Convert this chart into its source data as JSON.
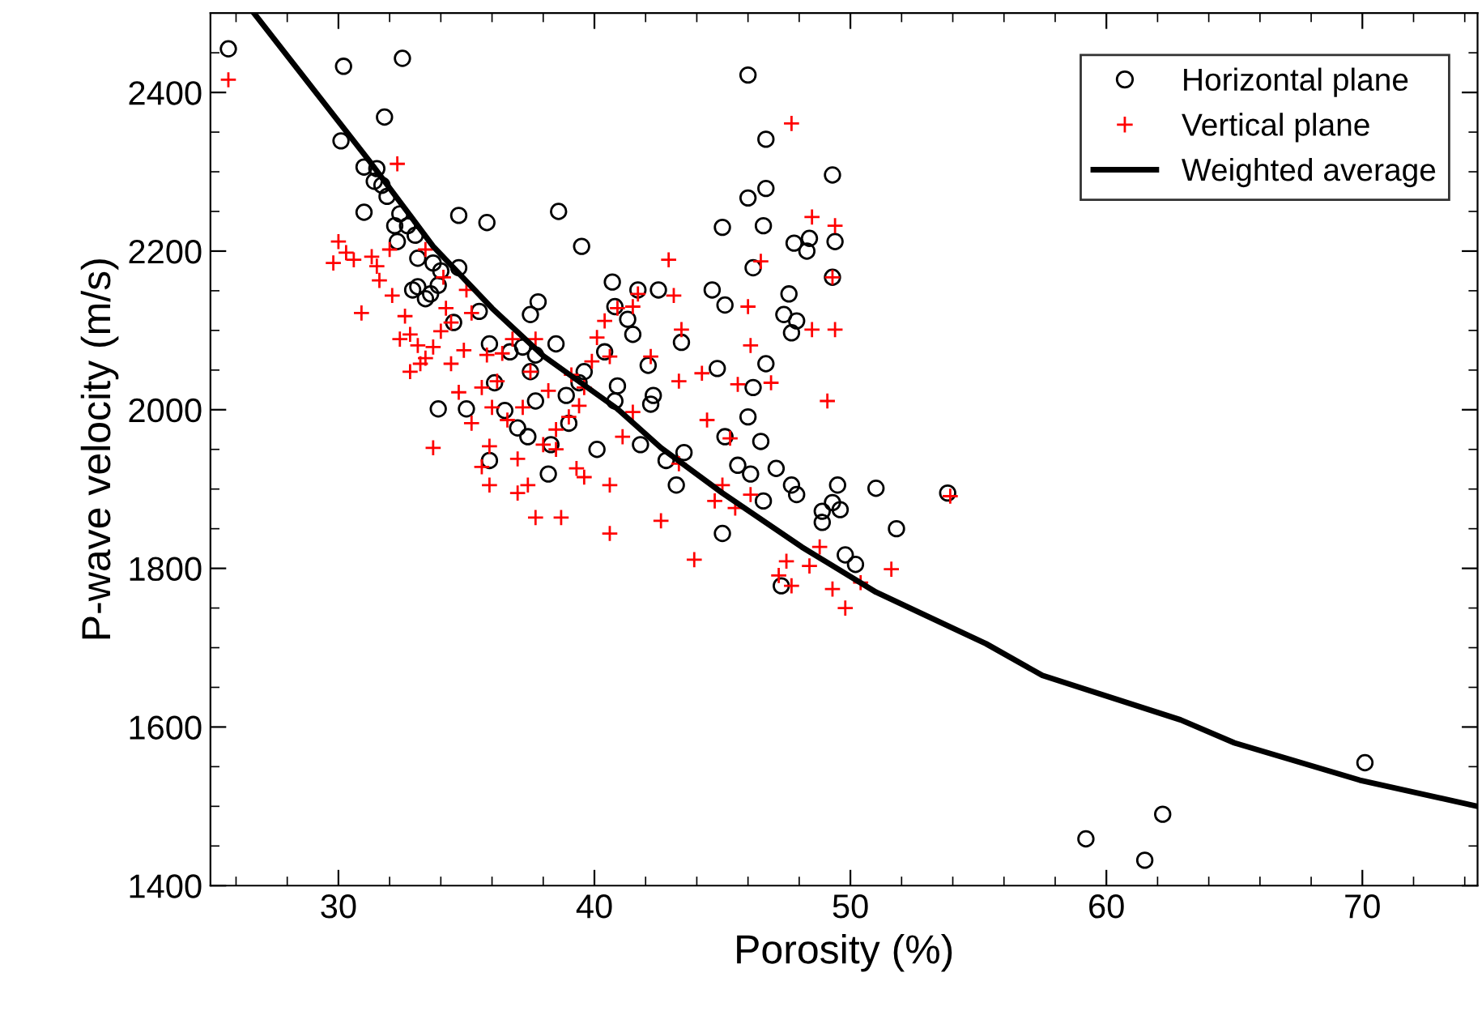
{
  "chart_data": {
    "type": "scatter",
    "xlabel": "Porosity (%)",
    "ylabel": "P-wave velocity (m/s)",
    "xlim": [
      25,
      74.5
    ],
    "ylim": [
      1400,
      2500
    ],
    "xticks": [
      {
        "value": 26,
        "label": null
      },
      {
        "value": 28,
        "label": null
      },
      30,
      {
        "value": 32,
        "label": null
      },
      {
        "value": 34,
        "label": null
      },
      {
        "value": 36,
        "label": null
      },
      {
        "value": 38,
        "label": null
      },
      40,
      {
        "value": 42,
        "label": null
      },
      {
        "value": 44,
        "label": null
      },
      {
        "value": 46,
        "label": null
      },
      {
        "value": 48,
        "label": null
      },
      50,
      {
        "value": 52,
        "label": null
      },
      {
        "value": 54,
        "label": null
      },
      {
        "value": 56,
        "label": null
      },
      {
        "value": 58,
        "label": null
      },
      60,
      {
        "value": 62,
        "label": null
      },
      {
        "value": 64,
        "label": null
      },
      {
        "value": 66,
        "label": null
      },
      {
        "value": 68,
        "label": null
      },
      70,
      {
        "value": 72,
        "label": null
      },
      {
        "value": 74,
        "label": null
      }
    ],
    "yticks": [
      1400,
      {
        "value": 1450,
        "label": null
      },
      {
        "value": 1500,
        "label": null
      },
      {
        "value": 1550,
        "label": null
      },
      1600,
      {
        "value": 1650,
        "label": null
      },
      {
        "value": 1700,
        "label": null
      },
      {
        "value": 1750,
        "label": null
      },
      1800,
      {
        "value": 1850,
        "label": null
      },
      {
        "value": 1900,
        "label": null
      },
      {
        "value": 1950,
        "label": null
      },
      2000,
      {
        "value": 2050,
        "label": null
      },
      {
        "value": 2100,
        "label": null
      },
      {
        "value": 2150,
        "label": null
      },
      2200,
      {
        "value": 2250,
        "label": null
      },
      {
        "value": 2300,
        "label": null
      },
      {
        "value": 2350,
        "label": null
      },
      2400,
      {
        "value": 2450,
        "label": null
      }
    ],
    "grid": false,
    "legend": "top right",
    "series": [
      {
        "name": "Horizontal plane",
        "marker": "circle",
        "color": "#000000",
        "x": [
          25.7,
          30.2,
          32.5,
          30.1,
          31.8,
          31.0,
          31.0,
          31.5,
          31.7,
          31.4,
          31.9,
          32.4,
          32.2,
          32.7,
          32.3,
          33.0,
          33.1,
          32.9,
          33.1,
          33.4,
          33.6,
          33.9,
          34.7,
          35.8,
          33.7,
          34.0,
          34.7,
          34.5,
          35.5,
          35.9,
          36.1,
          36.5,
          36.7,
          37.5,
          37.2,
          37.7,
          37.5,
          37.8,
          37.7,
          38.6,
          39.5,
          40.8,
          41.5,
          40.7,
          41.7,
          42.1,
          43.4,
          42.5,
          43.5,
          44.8,
          45.1,
          45.0,
          45.1,
          44.6,
          46.0,
          46.6,
          46.7,
          46.0,
          46.2,
          46.7,
          47.8,
          47.6,
          48.4,
          48.3,
          49.3,
          49.3,
          49.4,
          47.4,
          47.9,
          47.7,
          46.7,
          46.2,
          46.0,
          46.5,
          45.6,
          46.1,
          46.6,
          47.1,
          47.7,
          47.9,
          48.9,
          48.9,
          49.3,
          49.6,
          49.5,
          50.2,
          51.8,
          53.8,
          51.0,
          47.3,
          45.0,
          49.8,
          43.2,
          42.8,
          40.1,
          39.6,
          39.0,
          38.2,
          37.4,
          33.9,
          35.0,
          35.9,
          37.0,
          38.3,
          40.9,
          42.2,
          39.4,
          38.9,
          40.8,
          38.5,
          41.3,
          40.4,
          42.3,
          41.8,
          59.2,
          61.5,
          62.2,
          70.1
        ],
        "values": [
          2455,
          2433,
          2443,
          2339,
          2369,
          2306,
          2249,
          2304,
          2283,
          2288,
          2269,
          2247,
          2232,
          2232,
          2212,
          2220,
          2191,
          2151,
          2155,
          2140,
          2146,
          2157,
          2245,
          2236,
          2185,
          2175,
          2179,
          2110,
          2124,
          2083,
          2034,
          1999,
          2073,
          2120,
          2079,
          2069,
          2048,
          2136,
          2011,
          2250,
          2206,
          2130,
          2095,
          2161,
          2151,
          2056,
          2085,
          2151,
          1946,
          2052,
          1966,
          2230,
          2132,
          2151,
          2267,
          2232,
          2279,
          2422,
          2179,
          2341,
          2210,
          2146,
          2216,
          2200,
          2167,
          2296,
          2212,
          2120,
          2112,
          2097,
          2058,
          2028,
          1991,
          1960,
          1930,
          1919,
          1885,
          1926,
          1905,
          1893,
          1858,
          1872,
          1883,
          1874,
          1905,
          1805,
          1850,
          1895,
          1901,
          1778,
          1844,
          1817,
          1905,
          1936,
          1950,
          2048,
          1983,
          1919,
          1966,
          2001,
          2001,
          1936,
          1977,
          1956,
          2030,
          2007,
          2034,
          2018,
          2011,
          2083,
          2114,
          2073,
          2018,
          1956,
          1459,
          1432,
          1490,
          1555
        ]
      },
      {
        "name": "Vertical plane",
        "marker": "cross",
        "color": "#ff0000",
        "x": [
          25.7,
          32.3,
          30.0,
          29.8,
          30.3,
          30.6,
          30.9,
          31.3,
          31.5,
          31.6,
          32.0,
          32.1,
          32.4,
          32.6,
          32.8,
          33.1,
          32.8,
          33.2,
          33.4,
          33.7,
          33.7,
          34.0,
          34.2,
          34.4,
          34.4,
          34.9,
          34.7,
          35.0,
          35.2,
          35.2,
          35.6,
          35.9,
          36.0,
          36.2,
          36.4,
          36.6,
          37.0,
          37.0,
          37.2,
          37.5,
          37.7,
          38.0,
          38.2,
          38.5,
          38.7,
          39.1,
          39.4,
          39.6,
          39.9,
          40.1,
          40.4,
          40.6,
          40.9,
          41.5,
          41.7,
          42.2,
          42.9,
          43.1,
          43.3,
          43.3,
          43.4,
          44.2,
          44.4,
          44.7,
          45.3,
          45.5,
          46.0,
          46.1,
          46.5,
          46.1,
          46.9,
          47.2,
          47.5,
          47.7,
          48.4,
          48.8,
          49.1,
          49.3,
          49.8,
          50.4,
          51.6,
          53.9,
          47.7,
          48.5,
          49.4,
          49.3,
          49.4,
          48.5,
          45.6,
          45.0,
          43.9,
          42.6,
          40.6,
          41.1,
          41.5,
          40.6,
          39.6,
          37.7,
          37.4,
          35.6,
          36.8,
          35.8,
          33.4,
          34.1,
          35.9,
          38.5,
          39.0,
          39.3
        ],
        "values": [
          2416,
          2310,
          2212,
          2185,
          2198,
          2189,
          2122,
          2193,
          2181,
          2163,
          2202,
          2144,
          2089,
          2118,
          2095,
          2081,
          2048,
          2058,
          2065,
          2079,
          1952,
          2099,
          2128,
          2110,
          2058,
          2075,
          2022,
          2151,
          2122,
          1983,
          2028,
          1905,
          2003,
          2036,
          2071,
          1987,
          1938,
          1895,
          2003,
          2048,
          2089,
          1956,
          2024,
          1975,
          1864,
          2044,
          2005,
          2028,
          2061,
          2091,
          2112,
          2067,
          2128,
          2130,
          2146,
          2067,
          2189,
          2144,
          2036,
          1932,
          2101,
          2046,
          1987,
          1885,
          1964,
          1876,
          2130,
          2081,
          2187,
          1893,
          2034,
          1791,
          1809,
          1778,
          1803,
          1827,
          2011,
          1774,
          1750,
          1782,
          1799,
          1891,
          2361,
          2243,
          2232,
          2167,
          2101,
          2101,
          2032,
          1905,
          1811,
          1860,
          1844,
          1966,
          1997,
          1905,
          1915,
          1864,
          1905,
          1928,
          2089,
          2069,
          2202,
          2167,
          1954,
          1950,
          1991,
          1926
        ]
      },
      {
        "name": "Weighted average",
        "type": "line",
        "marker": "none",
        "line_style": "solid",
        "color": "#000000",
        "x": [
          26.7,
          31.2,
          33.7,
          36.0,
          38.0,
          40.9,
          42.6,
          45.0,
          48.1,
          51.0,
          55.3,
          57.5,
          62.9,
          65.0,
          69.9,
          74.5
        ],
        "values": [
          2500,
          2314,
          2206,
          2128,
          2068,
          2001,
          1952,
          1895,
          1827,
          1770,
          1705,
          1665,
          1609,
          1580,
          1533,
          1500
        ]
      }
    ]
  }
}
